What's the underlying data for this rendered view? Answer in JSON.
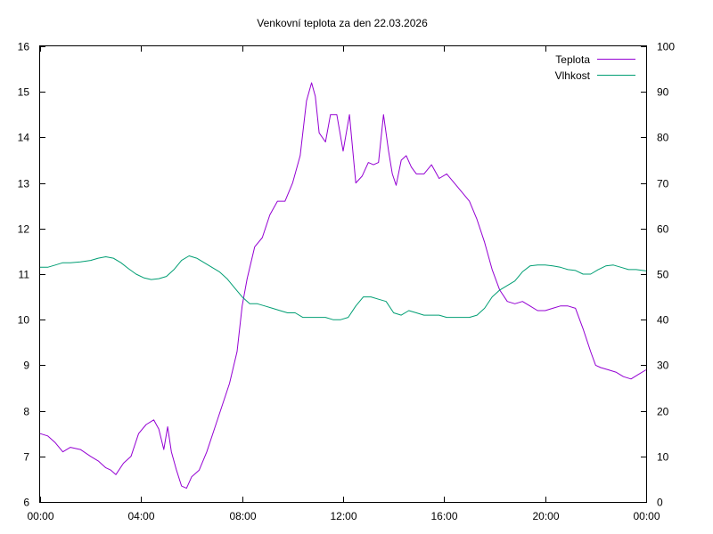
{
  "chart_data": {
    "type": "line",
    "title": "Venkovní teplota za den 22.03.2026",
    "x_ticks": [
      "00:00",
      "04:00",
      "08:00",
      "12:00",
      "16:00",
      "20:00",
      "00:00"
    ],
    "x_range_hours": [
      0,
      24
    ],
    "y_left": {
      "range": [
        6,
        16
      ],
      "ticks": [
        "6",
        "7",
        "8",
        "9",
        "10",
        "11",
        "12",
        "13",
        "14",
        "15",
        "16"
      ]
    },
    "y_right": {
      "range": [
        0,
        100
      ],
      "ticks": [
        "0",
        "10",
        "20",
        "30",
        "40",
        "50",
        "60",
        "70",
        "80",
        "90",
        "100"
      ]
    },
    "grid": false,
    "legend_position": "top-right",
    "series": [
      {
        "name": "Teplota",
        "axis": "left",
        "color": "#9400d3",
        "x": [
          0,
          0.3,
          0.6,
          0.9,
          1.2,
          1.6,
          2.0,
          2.3,
          2.6,
          2.8,
          3.0,
          3.3,
          3.6,
          3.9,
          4.2,
          4.5,
          4.7,
          4.9,
          5.05,
          5.2,
          5.4,
          5.6,
          5.8,
          6.0,
          6.3,
          6.6,
          6.9,
          7.2,
          7.5,
          7.8,
          8.0,
          8.2,
          8.5,
          8.8,
          9.1,
          9.4,
          9.7,
          10.0,
          10.3,
          10.55,
          10.75,
          10.9,
          11.05,
          11.3,
          11.5,
          11.75,
          12.0,
          12.25,
          12.5,
          12.75,
          13.0,
          13.2,
          13.4,
          13.6,
          13.8,
          13.95,
          14.1,
          14.3,
          14.5,
          14.7,
          14.9,
          15.2,
          15.5,
          15.8,
          16.1,
          16.4,
          16.7,
          17.0,
          17.3,
          17.6,
          17.9,
          18.2,
          18.5,
          18.8,
          19.1,
          19.4,
          19.7,
          20.0,
          20.3,
          20.6,
          20.9,
          21.2,
          21.5,
          21.8,
          22.0,
          22.2,
          22.5,
          22.8,
          23.1,
          23.4,
          23.7,
          24.0
        ],
        "y": [
          7.5,
          7.45,
          7.3,
          7.1,
          7.2,
          7.15,
          7.0,
          6.9,
          6.75,
          6.7,
          6.6,
          6.85,
          7.0,
          7.5,
          7.7,
          7.8,
          7.6,
          7.15,
          7.65,
          7.1,
          6.7,
          6.35,
          6.3,
          6.55,
          6.7,
          7.1,
          7.6,
          8.1,
          8.6,
          9.3,
          10.3,
          10.9,
          11.6,
          11.8,
          12.3,
          12.6,
          12.6,
          13.0,
          13.6,
          14.8,
          15.2,
          14.9,
          14.1,
          13.9,
          14.5,
          14.5,
          13.7,
          14.5,
          13.0,
          13.15,
          13.45,
          13.4,
          13.45,
          14.5,
          13.7,
          13.2,
          12.95,
          13.5,
          13.6,
          13.35,
          13.2,
          13.2,
          13.4,
          13.1,
          13.2,
          13.0,
          12.8,
          12.6,
          12.2,
          11.7,
          11.1,
          10.65,
          10.4,
          10.35,
          10.4,
          10.3,
          10.2,
          10.2,
          10.25,
          10.3,
          10.3,
          10.25,
          9.8,
          9.3,
          9.0,
          8.95,
          8.9,
          8.85,
          8.75,
          8.7,
          8.8,
          8.9
        ]
      },
      {
        "name": "Vlhkost",
        "axis": "right",
        "color": "#009e73",
        "x": [
          0,
          0.3,
          0.6,
          0.9,
          1.2,
          1.6,
          2.0,
          2.3,
          2.6,
          2.9,
          3.2,
          3.5,
          3.8,
          4.1,
          4.4,
          4.7,
          5.0,
          5.3,
          5.6,
          5.9,
          6.2,
          6.5,
          6.8,
          7.1,
          7.4,
          7.7,
          8.0,
          8.3,
          8.6,
          8.9,
          9.2,
          9.5,
          9.8,
          10.1,
          10.4,
          10.7,
          11.0,
          11.3,
          11.6,
          11.9,
          12.2,
          12.5,
          12.8,
          13.1,
          13.4,
          13.7,
          14.0,
          14.3,
          14.6,
          14.9,
          15.2,
          15.5,
          15.8,
          16.1,
          16.4,
          16.7,
          17.0,
          17.3,
          17.6,
          17.9,
          18.2,
          18.5,
          18.8,
          19.1,
          19.4,
          19.7,
          20.0,
          20.3,
          20.6,
          20.9,
          21.2,
          21.5,
          21.8,
          22.1,
          22.4,
          22.7,
          23.0,
          23.3,
          23.6,
          24.0
        ],
        "y": [
          51.5,
          51.5,
          52.0,
          52.5,
          52.5,
          52.7,
          53.0,
          53.5,
          53.8,
          53.5,
          52.5,
          51.2,
          50.0,
          49.2,
          48.8,
          49.0,
          49.5,
          51.0,
          53.0,
          54.0,
          53.5,
          52.5,
          51.5,
          50.5,
          49.0,
          47.0,
          45.0,
          43.5,
          43.5,
          43.0,
          42.5,
          42.0,
          41.5,
          41.5,
          40.5,
          40.5,
          40.5,
          40.5,
          40.0,
          40.0,
          40.5,
          43.0,
          45.0,
          45.0,
          44.5,
          44.0,
          41.5,
          41.0,
          42.0,
          41.5,
          41.0,
          41.0,
          41.0,
          40.5,
          40.5,
          40.5,
          40.5,
          41.0,
          42.5,
          45.0,
          46.5,
          47.5,
          48.5,
          50.5,
          51.8,
          52.0,
          52.0,
          51.8,
          51.5,
          51.0,
          50.8,
          50.0,
          50.0,
          51.0,
          51.8,
          52.0,
          51.5,
          51.0,
          51.0,
          50.7
        ]
      }
    ]
  }
}
